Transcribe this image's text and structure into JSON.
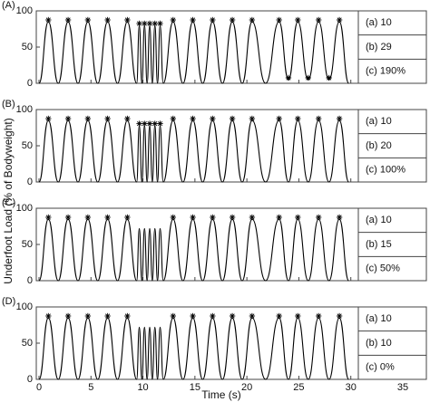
{
  "figure": {
    "xlabel": "Time (s)",
    "ylabel": "Underfoot Load (% of Bodyweight)"
  },
  "chart_data": [
    {
      "type": "line",
      "panel_label": "(A)",
      "xlim": [
        0,
        35
      ],
      "ylim": [
        0,
        100
      ],
      "yticks": [
        0,
        50,
        100
      ],
      "xticks": [
        0,
        5,
        10,
        15,
        20,
        25,
        30,
        35
      ],
      "x": [
        0,
        0.9,
        1.85,
        2.8,
        3.75,
        4.7,
        5.65,
        6.6,
        7.55,
        8.5,
        9.4,
        9.65,
        9.9,
        10.15,
        10.4,
        10.65,
        10.9,
        11.15,
        11.4,
        11.65,
        11.95,
        12.9,
        13.85,
        14.8,
        15.75,
        16.7,
        17.65,
        18.6,
        19.55,
        20.5,
        21.8,
        23.1,
        24.0,
        24.9,
        25.9,
        26.9,
        27.9,
        28.9,
        29.8
      ],
      "series": [
        {
          "color": "#000000",
          "values": [
            0,
            85,
            0,
            85,
            0,
            85,
            0,
            85,
            0,
            85,
            0,
            80,
            0,
            80,
            0,
            80,
            0,
            80,
            0,
            80,
            0,
            85,
            0,
            85,
            0,
            85,
            0,
            85,
            0,
            85,
            0,
            85,
            5,
            85,
            5,
            85,
            5,
            85,
            0
          ]
        }
      ],
      "markers": {
        "x": [
          0.9,
          2.8,
          4.7,
          6.6,
          8.5,
          9.65,
          10.15,
          10.65,
          11.15,
          11.65,
          12.9,
          14.8,
          16.7,
          18.6,
          20.5,
          23.1,
          24.0,
          24.9,
          25.9,
          26.9,
          27.9,
          28.9
        ],
        "values": [
          85,
          85,
          85,
          85,
          85,
          80,
          80,
          80,
          80,
          80,
          85,
          85,
          85,
          85,
          85,
          85,
          5,
          85,
          5,
          85,
          5,
          85
        ]
      },
      "table": [
        "(a) 10",
        "(b) 29",
        "(c) 190%"
      ]
    },
    {
      "type": "line",
      "panel_label": "(B)",
      "xlim": [
        0,
        35
      ],
      "ylim": [
        0,
        100
      ],
      "yticks": [
        0,
        50,
        100
      ],
      "xticks": [
        0,
        5,
        10,
        15,
        20,
        25,
        30,
        35
      ],
      "x": [
        0,
        0.9,
        1.85,
        2.8,
        3.75,
        4.7,
        5.65,
        6.6,
        7.55,
        8.5,
        9.4,
        9.65,
        9.9,
        10.15,
        10.4,
        10.65,
        10.9,
        11.15,
        11.4,
        11.65,
        11.95,
        12.9,
        13.85,
        14.8,
        15.75,
        16.7,
        17.65,
        18.6,
        19.55,
        20.5,
        21.8,
        23.1,
        24.0,
        24.9,
        25.9,
        26.9,
        27.9,
        28.9,
        29.8
      ],
      "series": [
        {
          "color": "#000000",
          "values": [
            0,
            85,
            0,
            85,
            0,
            85,
            0,
            85,
            0,
            85,
            0,
            78,
            0,
            78,
            0,
            78,
            0,
            78,
            0,
            78,
            0,
            85,
            0,
            85,
            0,
            85,
            0,
            85,
            0,
            85,
            0,
            85,
            0,
            85,
            0,
            85,
            0,
            85,
            0
          ]
        }
      ],
      "markers": {
        "x": [
          0.9,
          2.8,
          4.7,
          6.6,
          8.5,
          9.65,
          10.15,
          10.65,
          11.15,
          11.65,
          12.9,
          14.8,
          16.7,
          18.6,
          20.5,
          23.1,
          24.9,
          26.9,
          28.9
        ],
        "values": [
          85,
          85,
          85,
          85,
          85,
          78,
          78,
          78,
          78,
          78,
          85,
          85,
          85,
          85,
          85,
          85,
          85,
          85,
          85
        ]
      },
      "table": [
        "(a) 10",
        "(b) 20",
        "(c) 100%"
      ]
    },
    {
      "type": "line",
      "panel_label": "(C)",
      "xlim": [
        0,
        35
      ],
      "ylim": [
        0,
        100
      ],
      "yticks": [
        0,
        50,
        100
      ],
      "xticks": [
        0,
        5,
        10,
        15,
        20,
        25,
        30,
        35
      ],
      "x": [
        0,
        0.9,
        1.85,
        2.8,
        3.75,
        4.7,
        5.65,
        6.6,
        7.55,
        8.5,
        9.4,
        9.65,
        9.9,
        10.15,
        10.4,
        10.65,
        10.9,
        11.15,
        11.4,
        11.65,
        11.95,
        12.9,
        13.85,
        14.8,
        15.75,
        16.7,
        17.65,
        18.6,
        19.55,
        20.5,
        21.8,
        23.1,
        24.0,
        24.9,
        25.9,
        26.9,
        27.9,
        28.9,
        29.8
      ],
      "series": [
        {
          "color": "#000000",
          "values": [
            0,
            85,
            0,
            85,
            0,
            85,
            0,
            85,
            0,
            85,
            0,
            72,
            0,
            72,
            0,
            72,
            0,
            72,
            0,
            72,
            0,
            85,
            0,
            85,
            0,
            85,
            0,
            85,
            0,
            85,
            0,
            85,
            0,
            85,
            0,
            85,
            0,
            85,
            0
          ]
        }
      ],
      "markers": {
        "x": [
          0.9,
          2.8,
          4.7,
          6.6,
          8.5,
          12.9,
          14.8,
          16.7,
          18.6,
          20.5,
          23.1,
          24.9,
          26.9,
          28.9
        ],
        "values": [
          85,
          85,
          85,
          85,
          85,
          85,
          85,
          85,
          85,
          85,
          85,
          85,
          85,
          85
        ]
      },
      "table": [
        "(a) 10",
        "(b) 15",
        "(c) 50%"
      ]
    },
    {
      "type": "line",
      "panel_label": "(D)",
      "xlim": [
        0,
        35
      ],
      "ylim": [
        0,
        100
      ],
      "yticks": [
        0,
        50,
        100
      ],
      "xticks": [
        0,
        5,
        10,
        15,
        20,
        25,
        30,
        35
      ],
      "x": [
        0,
        0.9,
        1.85,
        2.8,
        3.75,
        4.7,
        5.65,
        6.6,
        7.55,
        8.5,
        9.4,
        9.65,
        9.9,
        10.15,
        10.4,
        10.65,
        10.9,
        11.15,
        11.4,
        11.65,
        11.95,
        12.9,
        13.85,
        14.8,
        15.75,
        16.7,
        17.65,
        18.6,
        19.55,
        20.5,
        21.8,
        23.1,
        24.0,
        24.9,
        25.9,
        26.9,
        27.9,
        28.9,
        29.8
      ],
      "series": [
        {
          "color": "#000000",
          "values": [
            0,
            85,
            0,
            85,
            0,
            85,
            0,
            85,
            0,
            85,
            0,
            72,
            0,
            72,
            0,
            72,
            0,
            72,
            0,
            72,
            0,
            85,
            0,
            85,
            0,
            85,
            0,
            85,
            0,
            85,
            0,
            85,
            0,
            85,
            0,
            85,
            0,
            85,
            0
          ]
        }
      ],
      "markers": {
        "x": [
          0.9,
          2.8,
          4.7,
          6.6,
          8.5,
          12.9,
          14.8,
          16.7,
          18.6,
          20.5,
          23.1,
          24.9,
          26.9,
          28.9
        ],
        "values": [
          85,
          85,
          85,
          85,
          85,
          85,
          85,
          85,
          85,
          85,
          85,
          85,
          85,
          85
        ]
      },
      "table": [
        "(a) 10",
        "(b) 10",
        "(c) 0%"
      ]
    }
  ]
}
